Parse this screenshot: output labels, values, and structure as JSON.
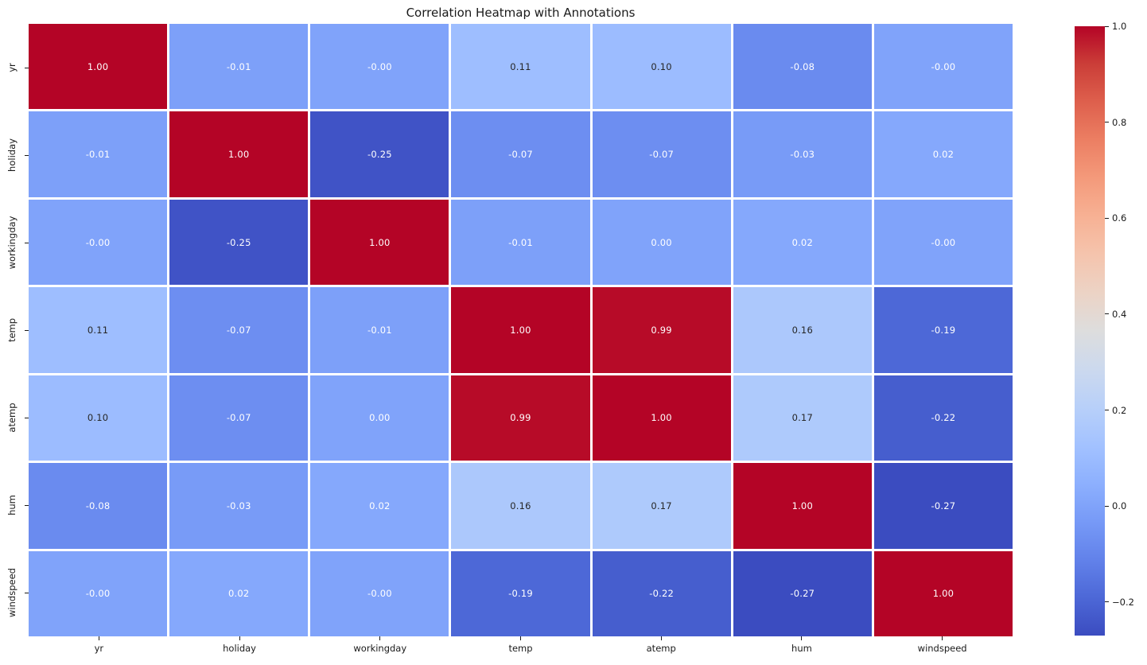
{
  "title": "Correlation Heatmap with Annotations",
  "chart_data": {
    "type": "heatmap",
    "categories": [
      "yr",
      "holiday",
      "workingday",
      "temp",
      "atemp",
      "hum",
      "windspeed"
    ],
    "values": [
      [
        1.0,
        -0.01,
        -0.0,
        0.11,
        0.1,
        -0.08,
        -0.0
      ],
      [
        -0.01,
        1.0,
        -0.25,
        -0.07,
        -0.07,
        -0.03,
        0.02
      ],
      [
        -0.0,
        -0.25,
        1.0,
        -0.01,
        0.0,
        0.02,
        -0.0
      ],
      [
        0.11,
        -0.07,
        -0.01,
        1.0,
        0.99,
        0.16,
        -0.19
      ],
      [
        0.1,
        -0.07,
        0.0,
        0.99,
        1.0,
        0.17,
        -0.22
      ],
      [
        -0.08,
        -0.03,
        0.02,
        0.16,
        0.17,
        1.0,
        -0.27
      ],
      [
        -0.0,
        0.02,
        -0.0,
        -0.19,
        -0.22,
        -0.27,
        1.0
      ]
    ],
    "annotations": [
      [
        "1.00",
        "-0.01",
        "-0.00",
        "0.11",
        "0.10",
        "-0.08",
        "-0.00"
      ],
      [
        "-0.01",
        "1.00",
        "-0.25",
        "-0.07",
        "-0.07",
        "-0.03",
        "0.02"
      ],
      [
        "-0.00",
        "-0.25",
        "1.00",
        "-0.01",
        "0.00",
        "0.02",
        "-0.00"
      ],
      [
        "0.11",
        "-0.07",
        "-0.01",
        "1.00",
        "0.99",
        "0.16",
        "-0.19"
      ],
      [
        "0.10",
        "-0.07",
        "0.00",
        "0.99",
        "1.00",
        "0.17",
        "-0.22"
      ],
      [
        "-0.08",
        "-0.03",
        "0.02",
        "0.16",
        "0.17",
        "1.00",
        "-0.27"
      ],
      [
        "-0.00",
        "0.02",
        "-0.00",
        "-0.19",
        "-0.22",
        "-0.27",
        "1.00"
      ]
    ],
    "vmin": -0.27,
    "vmax": 1.0,
    "grid_gap_color": "#ffffff",
    "legend_position": "right-colorbar",
    "colorbar_ticks": [
      {
        "label": "1.0",
        "value": 1.0
      },
      {
        "label": "0.8",
        "value": 0.8
      },
      {
        "label": "0.6",
        "value": 0.6
      },
      {
        "label": "0.4",
        "value": 0.4
      },
      {
        "label": "0.2",
        "value": 0.2
      },
      {
        "label": "0.0",
        "value": 0.0
      },
      {
        "label": "−0.2",
        "value": -0.2
      }
    ],
    "colormap": {
      "name": "coolwarm",
      "stops": [
        [
          0.0,
          [
            59,
            76,
            192
          ]
        ],
        [
          0.0625,
          [
            77,
            104,
            215
          ]
        ],
        [
          0.125,
          [
            98,
            130,
            234
          ]
        ],
        [
          0.1875,
          [
            119,
            154,
            247
          ]
        ],
        [
          0.25,
          [
            141,
            176,
            254
          ]
        ],
        [
          0.3125,
          [
            163,
            194,
            255
          ]
        ],
        [
          0.375,
          [
            184,
            208,
            249
          ]
        ],
        [
          0.4375,
          [
            204,
            217,
            238
          ]
        ],
        [
          0.5,
          [
            221,
            221,
            221
          ]
        ],
        [
          0.5625,
          [
            236,
            211,
            197
          ]
        ],
        [
          0.625,
          [
            245,
            196,
            173
          ]
        ],
        [
          0.6875,
          [
            247,
            177,
            148
          ]
        ],
        [
          0.75,
          [
            244,
            154,
            123
          ]
        ],
        [
          0.8125,
          [
            236,
            127,
            99
          ]
        ],
        [
          0.875,
          [
            222,
            96,
            77
          ]
        ],
        [
          0.9375,
          [
            203,
            62,
            56
          ]
        ],
        [
          1.0,
          [
            180,
            4,
            38
          ]
        ]
      ]
    },
    "colors": {
      "annotation_dark_text": "#262626",
      "annotation_light_text": "#ffffff",
      "axis_text": "#1a1a1a",
      "background": "#ffffff"
    }
  }
}
